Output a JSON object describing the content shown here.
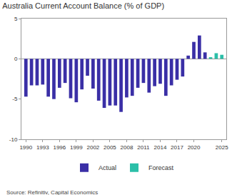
{
  "chart_data": {
    "type": "bar",
    "title": "Australia Current Account Balance (% of GDP)",
    "source": "Source: Refinitiv, Capital Economics",
    "categories": [
      "1990",
      null,
      null,
      "1993",
      null,
      null,
      "1996",
      null,
      null,
      "1999",
      null,
      null,
      "2002",
      null,
      null,
      "2005",
      null,
      null,
      "2008",
      null,
      null,
      "2011",
      null,
      null,
      "2014",
      null,
      null,
      "2017",
      null,
      null,
      "2020",
      null,
      null,
      null,
      null,
      "2025"
    ],
    "series": [
      {
        "name": "Actual",
        "color": "#3a2fa6",
        "values": [
          -4.7,
          -3.3,
          -3.3,
          -3.2,
          -4.7,
          -5.0,
          -3.6,
          -3.0,
          -4.9,
          -5.4,
          -3.8,
          -2.1,
          -3.7,
          -5.2,
          -6.1,
          -5.8,
          -5.8,
          -6.6,
          -4.8,
          -4.6,
          -3.6,
          -3.0,
          -4.2,
          -3.4,
          -3.1,
          -4.6,
          -3.3,
          -2.6,
          -2.2,
          0.4,
          2.1,
          2.9,
          0.8,
          null,
          null,
          null
        ]
      },
      {
        "name": "Forecast",
        "color": "#2bbfa8",
        "values": [
          null,
          null,
          null,
          null,
          null,
          null,
          null,
          null,
          null,
          null,
          null,
          null,
          null,
          null,
          null,
          null,
          null,
          null,
          null,
          null,
          null,
          null,
          null,
          null,
          null,
          null,
          null,
          null,
          null,
          null,
          null,
          null,
          null,
          0.2,
          0.7,
          0.5
        ]
      }
    ],
    "ylim": [
      -10,
      5
    ],
    "yticks": [
      -10,
      -5,
      0,
      5
    ],
    "grid": false,
    "legend": "bottom"
  }
}
